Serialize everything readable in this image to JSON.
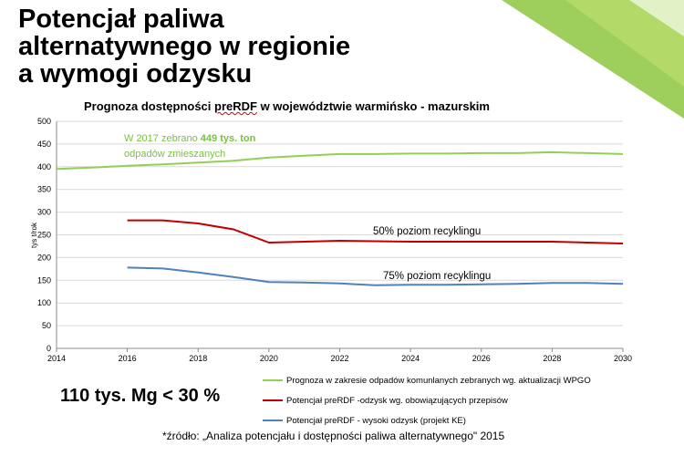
{
  "slide": {
    "title_lines": [
      "Potencjał paliwa",
      "alternatywnego w regionie",
      "a wymogi odzysku"
    ],
    "summary": "110 tys. Mg < 30 %",
    "source": "*źródło: „Analiza potencjału i dostępności paliwa alternatywnego\" 2015"
  },
  "colors": {
    "green": "#92d050",
    "red": "#c00000",
    "blue": "#4f81bd",
    "grid": "#d9d9d9",
    "accent_green": "#7ac142"
  },
  "chart_data": {
    "type": "line",
    "title_pre": "Prognoza dostępności ",
    "title_word": "preRDF",
    "title_post": " w województwie warmińsko - mazurskim",
    "ylabel": "tys t/rok",
    "xlabel": "",
    "xlim": [
      2014,
      2030
    ],
    "ylim": [
      0,
      500
    ],
    "x_ticks": [
      2014,
      2016,
      2018,
      2020,
      2022,
      2024,
      2026,
      2028,
      2030
    ],
    "y_ticks": [
      0,
      50,
      100,
      150,
      200,
      250,
      300,
      350,
      400,
      450,
      500
    ],
    "grid": true,
    "legend_position": "bottom",
    "series": [
      {
        "name": "Prognoza w zakresie odpadów komunlanych zebranych wg. aktualizacji WPGO",
        "color": "#92d050",
        "x": [
          2014,
          2015,
          2016,
          2017,
          2018,
          2019,
          2020,
          2021,
          2022,
          2023,
          2024,
          2025,
          2026,
          2027,
          2028,
          2029,
          2030
        ],
        "y": [
          395,
          398,
          402,
          405,
          409,
          413,
          420,
          424,
          428,
          428,
          429,
          429,
          430,
          430,
          432,
          430,
          428
        ]
      },
      {
        "name": "Potencjał preRDF -odzysk wg. obowiązujących przepisów",
        "color": "#c00000",
        "x": [
          2016,
          2017,
          2018,
          2019,
          2020,
          2021,
          2022,
          2023,
          2024,
          2025,
          2026,
          2027,
          2028,
          2029,
          2030
        ],
        "y": [
          282,
          282,
          275,
          262,
          233,
          235,
          237,
          236,
          235,
          235,
          235,
          235,
          235,
          233,
          231
        ]
      },
      {
        "name": "Potencjał preRDF - wysoki odzysk (projekt KE)",
        "color": "#4f81bd",
        "x": [
          2016,
          2017,
          2018,
          2019,
          2020,
          2021,
          2022,
          2023,
          2024,
          2025,
          2026,
          2027,
          2028,
          2029,
          2030
        ],
        "y": [
          178,
          176,
          167,
          157,
          146,
          145,
          143,
          139,
          140,
          140,
          141,
          142,
          144,
          144,
          142
        ]
      }
    ],
    "annotations": [
      {
        "id": "ann-2017",
        "color": "#7ac142",
        "line1_pre": "W 2017  zebrano ",
        "line1_bold": "449 tys. ton",
        "line2": "odpadów zmieszanych"
      },
      {
        "id": "ann-50",
        "color": "#000000",
        "text": "50% poziom recyklingu"
      },
      {
        "id": "ann-75",
        "color": "#000000",
        "text": "75% poziom recyklingu"
      }
    ]
  }
}
